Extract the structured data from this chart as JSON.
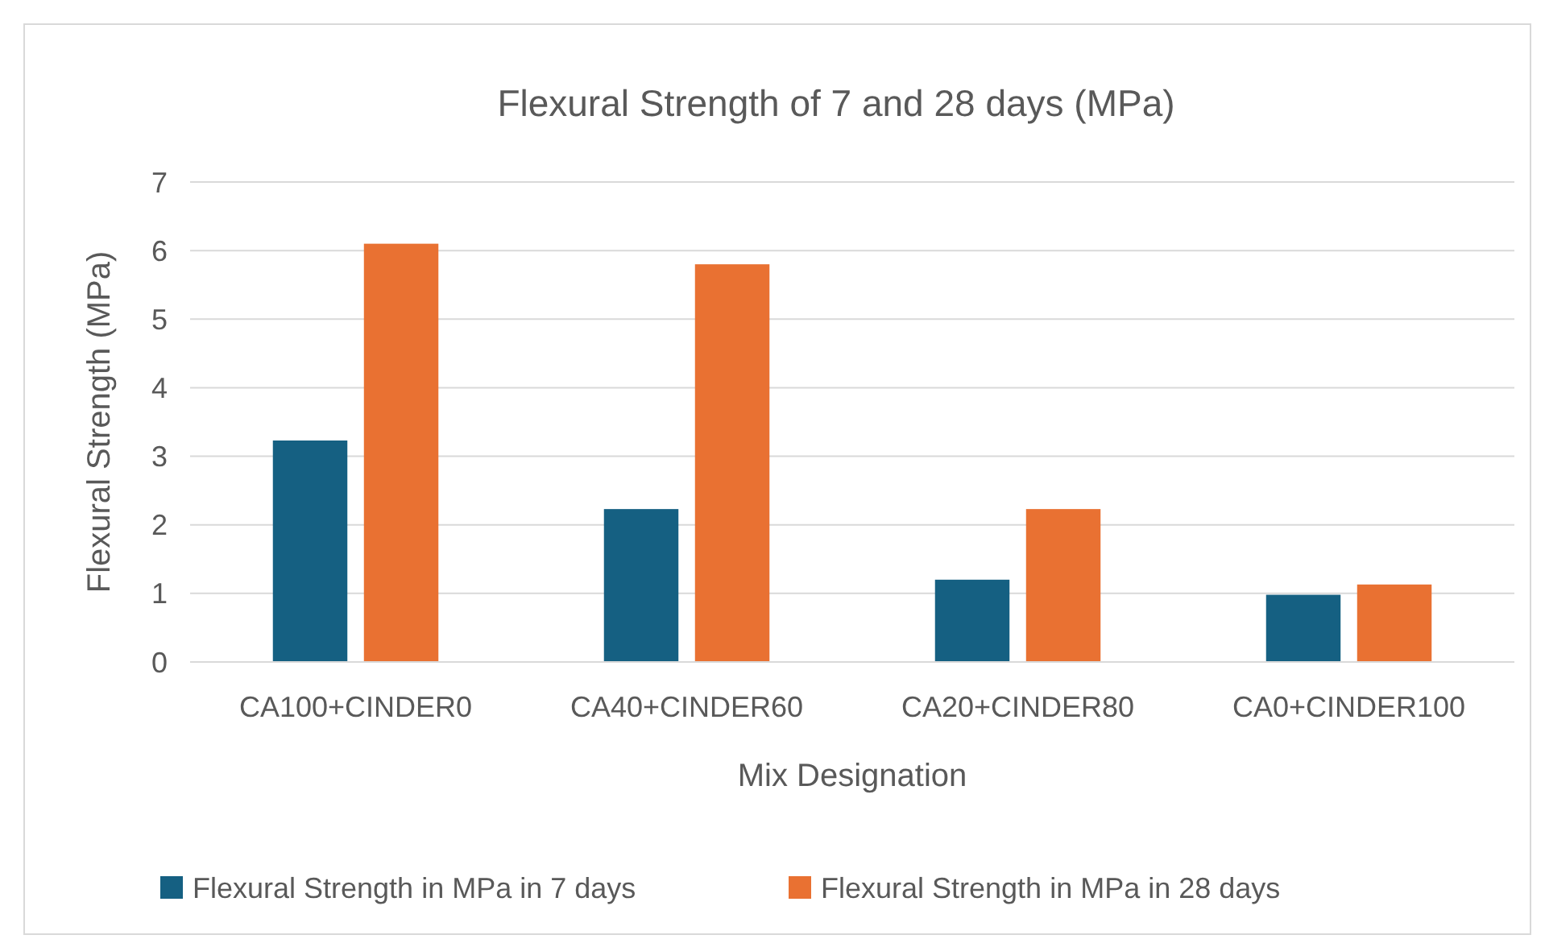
{
  "chart_data": {
    "type": "bar",
    "title": "Flexural Strength of 7 and 28 days (MPa)",
    "xlabel": "Mix Designation",
    "ylabel": "Flexural Strength (MPa)",
    "categories": [
      "CA100+CINDER0",
      "CA40+CINDER60",
      "CA20+CINDER80",
      "CA0+CINDER100"
    ],
    "series": [
      {
        "name": "Flexural Strength in MPa in 7 days",
        "color": "#156082",
        "values": [
          3.23,
          2.23,
          1.2,
          0.98
        ]
      },
      {
        "name": "Flexural Strength in MPa in 28 days",
        "color": "#e97132",
        "values": [
          6.1,
          5.8,
          2.23,
          1.13
        ]
      }
    ],
    "ylim": [
      0,
      7
    ],
    "yticks": [
      0,
      1,
      2,
      3,
      4,
      5,
      6,
      7
    ],
    "grid": "y",
    "legend": "bottom"
  }
}
